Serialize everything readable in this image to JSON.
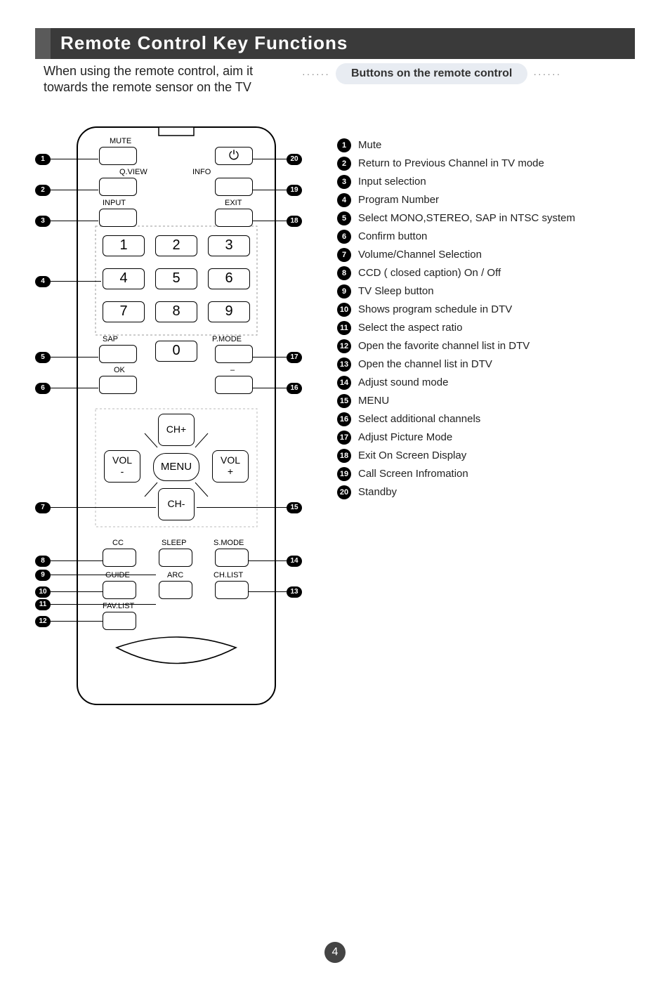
{
  "title": "Remote Control Key Functions",
  "subtitle": "When using the remote control, aim it towards the remote sensor on the TV",
  "pill": "Buttons on the remote control",
  "page_number": "4",
  "legend": [
    {
      "n": "1",
      "text": "Mute"
    },
    {
      "n": "2",
      "text": "Return to Previous Channel in TV mode"
    },
    {
      "n": "3",
      "text": "Input selection"
    },
    {
      "n": "4",
      "text": "Program Number"
    },
    {
      "n": "5",
      "text": "Select MONO,STEREO, SAP in NTSC system"
    },
    {
      "n": "6",
      "text": "Confirm button"
    },
    {
      "n": "7",
      "text": "Volume/Channel Selection"
    },
    {
      "n": "8",
      "text": "CCD ( closed caption) On / Off"
    },
    {
      "n": "9",
      "text": "TV Sleep button"
    },
    {
      "n": "10",
      "text": "Shows program schedule in DTV"
    },
    {
      "n": "11",
      "text": "Select the aspect ratio"
    },
    {
      "n": "12",
      "text": "Open the favorite channel list in DTV"
    },
    {
      "n": "13",
      "text": "Open the channel list in DTV"
    },
    {
      "n": "14",
      "text": "Adjust sound mode"
    },
    {
      "n": "15",
      "text": "MENU"
    },
    {
      "n": "16",
      "text": "Select additional channels"
    },
    {
      "n": "17",
      "text": "Adjust Picture Mode"
    },
    {
      "n": "18",
      "text": "Exit On Screen Display"
    },
    {
      "n": "19",
      "text": "Call Screen Infromation"
    },
    {
      "n": "20",
      "text": "Standby"
    }
  ],
  "remote_labels": {
    "mute": "MUTE",
    "qview": "Q.VIEW",
    "info": "INFO",
    "input": "INPUT",
    "exit": "EXIT",
    "sap": "SAP",
    "pmode": "P.MODE",
    "ok": "OK",
    "dash": "–",
    "ch_plus": "CH+",
    "ch_minus": "CH-",
    "vol_minus_a": "VOL",
    "vol_minus_b": "-",
    "vol_plus_a": "VOL",
    "vol_plus_b": "+",
    "menu": "MENU",
    "cc": "CC",
    "sleep": "SLEEP",
    "smode": "S.MODE",
    "guide": "GUIDE",
    "arc": "ARC",
    "chlist": "CH.LIST",
    "favlist": "FAV.LIST"
  },
  "keys": [
    "1",
    "2",
    "3",
    "4",
    "5",
    "6",
    "7",
    "8",
    "9",
    "0"
  ],
  "colors": {
    "title_bg": "#3a3a3a",
    "title_lead": "#5a5a5a",
    "pill_bg": "#e8ecf2"
  }
}
